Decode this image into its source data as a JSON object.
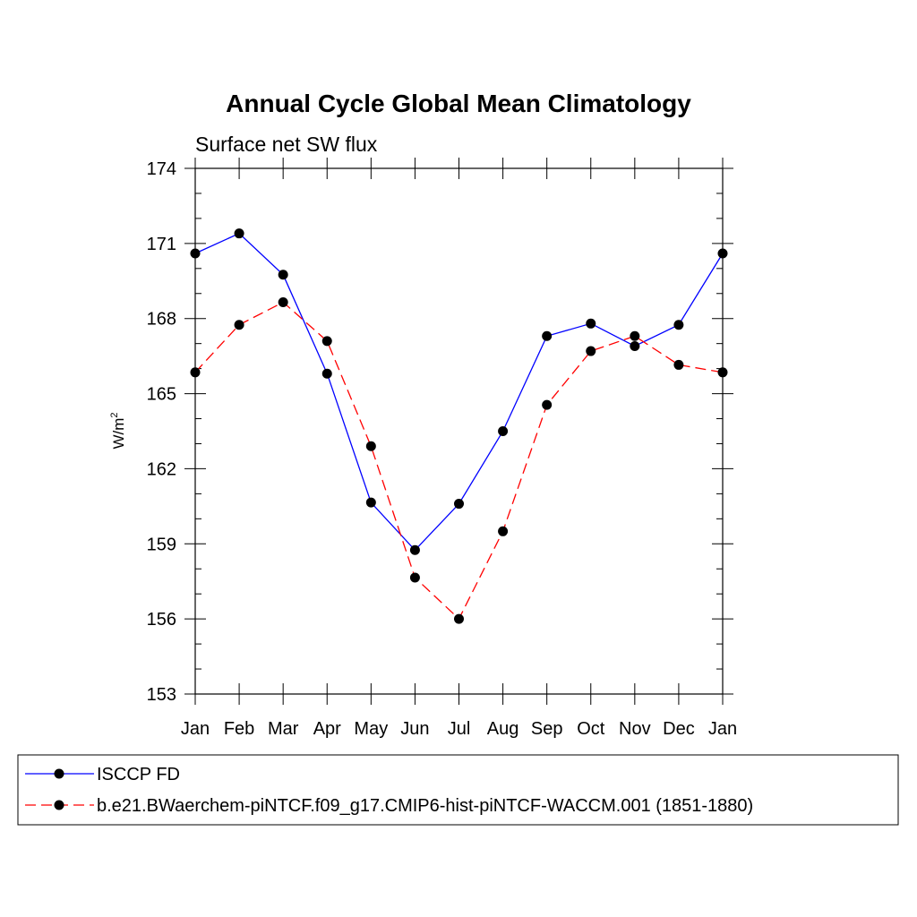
{
  "chart_data": {
    "type": "line",
    "title": "Annual Cycle Global Mean Climatology",
    "subtitle": "Surface net SW flux",
    "ylabel": "W/m",
    "ylabel_superscript": "2",
    "ylim": [
      153,
      174
    ],
    "yticks": [
      "153",
      "156",
      "159",
      "162",
      "165",
      "168",
      "171",
      "174"
    ],
    "categories": [
      "Jan",
      "Feb",
      "Mar",
      "Apr",
      "May",
      "Jun",
      "Jul",
      "Aug",
      "Sep",
      "Oct",
      "Nov",
      "Dec",
      "Jan"
    ],
    "series": [
      {
        "name": "ISCCP FD",
        "color": "#0000ff",
        "dash": "solid",
        "values": [
          170.6,
          171.4,
          169.75,
          165.8,
          160.65,
          158.75,
          160.6,
          163.5,
          167.3,
          167.8,
          166.9,
          167.75,
          170.6
        ]
      },
      {
        "name": "b.e21.BWaerchem-piNTCF.f09_g17.CMIP6-hist-piNTCF-WACCM.001 (1851-1880)",
        "color": "#ff0000",
        "dash": "dashed",
        "values": [
          165.85,
          167.75,
          168.65,
          167.1,
          162.9,
          157.65,
          156.0,
          159.5,
          164.55,
          166.7,
          167.3,
          166.15,
          165.85
        ]
      }
    ],
    "legend_position": "bottom",
    "grid": false
  }
}
